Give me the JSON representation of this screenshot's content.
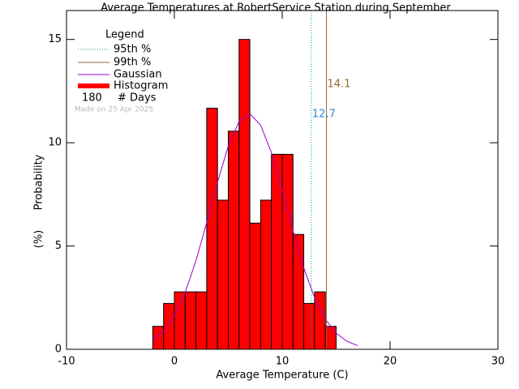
{
  "chart_data": {
    "type": "histogram",
    "title": "Average Temperatures at RobertService Station during September",
    "xlabel": "Average Temperature (C)",
    "ylabel": "Probability",
    "ylabel_unit": "(%)",
    "bins": [
      -2,
      -1,
      0,
      1,
      2,
      3,
      4,
      5,
      6,
      7,
      8,
      9,
      10,
      11,
      12,
      13,
      14,
      15
    ],
    "values": [
      1.11,
      2.22,
      2.78,
      2.78,
      2.78,
      11.67,
      7.22,
      10.56,
      15.0,
      6.11,
      7.22,
      9.44,
      9.44,
      5.56,
      2.22,
      2.78,
      1.11
    ],
    "color": "#ff0000",
    "histogram_name": "Histogram",
    "gaussian": {
      "name": "Gaussian",
      "color": "#9900cc",
      "x": [
        -2,
        -1,
        0,
        1,
        2,
        3,
        4,
        5,
        6,
        7,
        8,
        9,
        10,
        11,
        12,
        13,
        14,
        15,
        16,
        17
      ],
      "values": [
        0.45,
        0.89,
        1.63,
        2.75,
        4.28,
        6.13,
        8.09,
        9.84,
        11.03,
        11.4,
        10.85,
        9.52,
        7.7,
        5.74,
        3.94,
        2.5,
        1.46,
        0.78,
        0.39,
        0.18
      ]
    },
    "percentiles": [
      {
        "name": "95th %",
        "value": 12.7,
        "color": "#009999",
        "label_color": "#3388cc",
        "dash": true
      },
      {
        "name": "99th %",
        "value": 14.1,
        "color": "#996633",
        "label_color": "#996633",
        "dash": false
      }
    ],
    "legend_title": "Legend",
    "days": 180,
    "days_label": "# Days",
    "made_on": "Made on 25 Apr 2025",
    "xlim": [
      -10,
      30
    ],
    "xticks": [
      -10,
      0,
      10,
      20,
      30
    ],
    "ylim": [
      0,
      16.4
    ],
    "yticks": [
      0,
      5,
      10,
      15
    ]
  }
}
